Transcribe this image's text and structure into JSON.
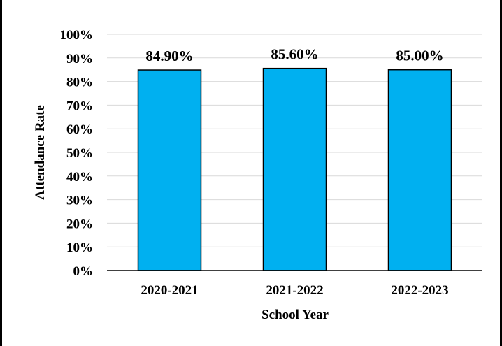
{
  "chart_data": {
    "type": "bar",
    "categories": [
      "2020-2021",
      "2021-2022",
      "2022-2023"
    ],
    "values": [
      84.9,
      85.6,
      85.0
    ],
    "data_labels": [
      "84.90%",
      "85.60%",
      "85.00%"
    ],
    "title": "",
    "xlabel": "School Year",
    "ylabel": "Attendance Rate",
    "ylim": [
      0,
      100
    ],
    "yticks": [
      "0%",
      "10%",
      "20%",
      "30%",
      "40%",
      "50%",
      "60%",
      "70%",
      "80%",
      "90%",
      "100%"
    ],
    "grid": true,
    "legend": "none",
    "colors": {
      "bar_fill": "#00B0F0",
      "bar_stroke": "#000000",
      "grid": "#D9D9D9",
      "axis": "#000000"
    }
  }
}
